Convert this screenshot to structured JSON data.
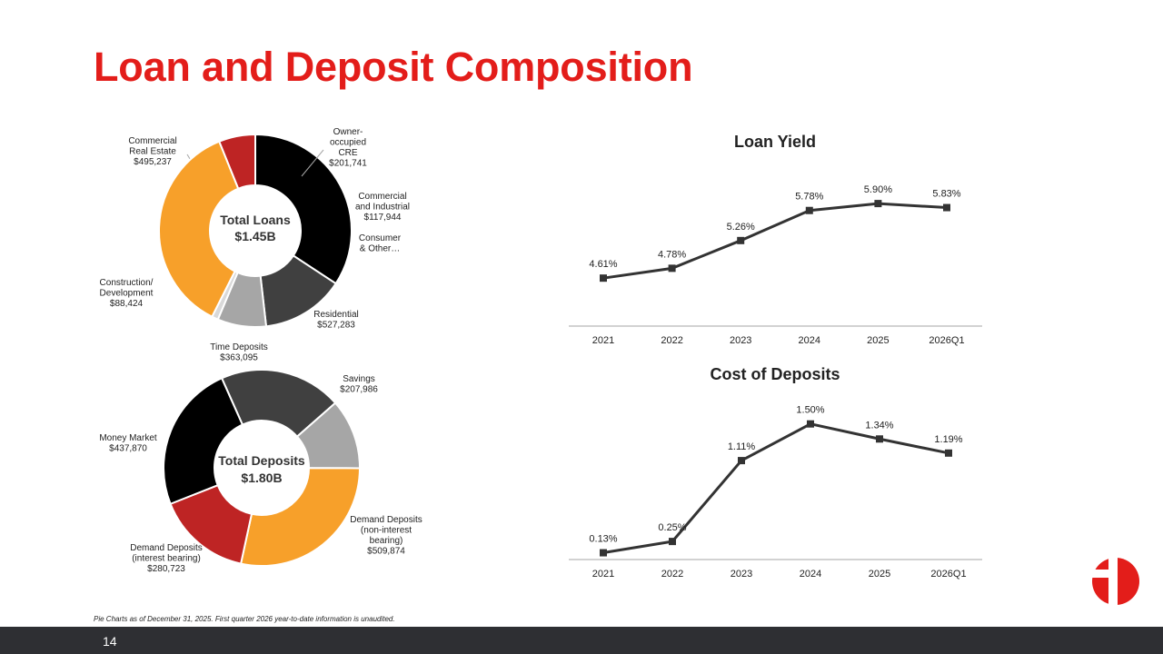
{
  "title": "Loan and Deposit Composition",
  "footnote": "Pie Charts as of December 31, 2025.  First quarter 2026 year-to-date information is unaudited.",
  "page_number": "14",
  "colors": {
    "title_red": "#e31d1a",
    "black": "#000000",
    "dark_gray": "#404040",
    "light_gray": "#a6a6a6",
    "very_light_gray": "#d9d9d9",
    "orange": "#f7a02a",
    "red": "#be2424",
    "line": "#333333",
    "footer": "#2e2f33"
  },
  "chart_data": [
    {
      "type": "pie",
      "center_label": [
        "Total Loans",
        "$1.45B"
      ],
      "slices": [
        {
          "label": [
            "Commercial",
            "Real Estate",
            "$495,237"
          ],
          "value": 495237,
          "color": "#000000"
        },
        {
          "label": [
            "Owner-",
            "occupied",
            "CRE",
            "$201,741"
          ],
          "value": 201741,
          "color": "#404040"
        },
        {
          "label": [
            "Commercial",
            "and Industrial",
            "$117,944"
          ],
          "value": 117944,
          "color": "#a6a6a6"
        },
        {
          "label": [
            "Consumer",
            "& Other…"
          ],
          "value": 15500,
          "color": "#d9d9d9"
        },
        {
          "label": [
            "Residential",
            "$527,283"
          ],
          "value": 527283,
          "color": "#f7a02a"
        },
        {
          "label": [
            "Construction/",
            "Development",
            "$88,424"
          ],
          "value": 88424,
          "color": "#be2424"
        }
      ]
    },
    {
      "type": "pie",
      "center_label": [
        "Total Deposits",
        "$1.80B"
      ],
      "slices": [
        {
          "label": [
            "Time Deposits",
            "$363,095"
          ],
          "value": 363095,
          "color": "#404040"
        },
        {
          "label": [
            "Savings",
            "$207,986"
          ],
          "value": 207986,
          "color": "#a6a6a6"
        },
        {
          "label": [
            "Demand Deposits",
            "(non-interest",
            "bearing)",
            "$509,874"
          ],
          "value": 509874,
          "color": "#f7a02a"
        },
        {
          "label": [
            "Demand Deposits",
            "(interest bearing)",
            "$280,723"
          ],
          "value": 280723,
          "color": "#be2424"
        },
        {
          "label": [
            "Money Market",
            "$437,870"
          ],
          "value": 437870,
          "color": "#000000"
        }
      ]
    },
    {
      "type": "line",
      "title": "Loan Yield",
      "categories": [
        "2021",
        "2022",
        "2023",
        "2024",
        "2025",
        "2026Q1"
      ],
      "values": [
        4.61,
        4.78,
        5.26,
        5.78,
        5.9,
        5.83
      ],
      "labels": [
        "4.61%",
        "4.78%",
        "5.26%",
        "5.78%",
        "5.90%",
        "5.83%"
      ],
      "ylim": [
        4.0,
        6.2
      ]
    },
    {
      "type": "line",
      "title": "Cost of Deposits",
      "categories": [
        "2021",
        "2022",
        "2023",
        "2024",
        "2025",
        "2026Q1"
      ],
      "values": [
        0.13,
        0.25,
        1.11,
        1.5,
        1.34,
        1.19
      ],
      "labels": [
        "0.13%",
        "0.25%",
        "1.11%",
        "1.50%",
        "1.34%",
        "1.19%"
      ],
      "ylim": [
        0.0,
        1.7
      ]
    }
  ]
}
